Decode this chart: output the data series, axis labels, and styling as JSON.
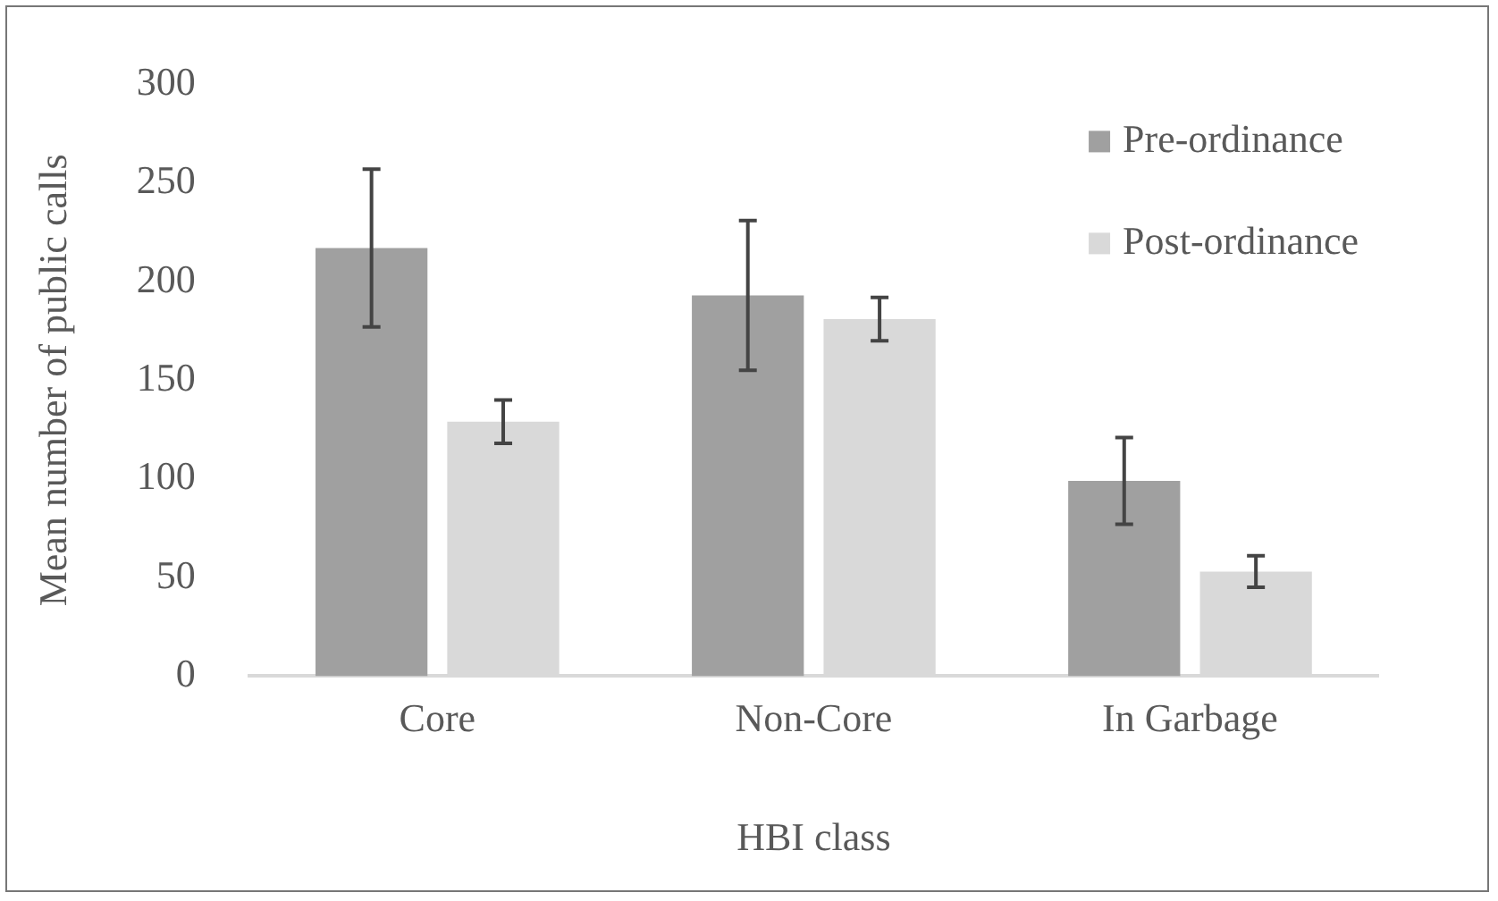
{
  "chart_data": {
    "type": "bar",
    "xlabel": "HBI class",
    "ylabel": "Mean number of public calls",
    "categories": [
      "Core",
      "Non-Core",
      "In Garbage"
    ],
    "series": [
      {
        "name": "Pre-ordinance",
        "color": "#a0a0a0",
        "values": [
          217,
          193,
          99
        ],
        "errors": [
          40,
          38,
          22
        ]
      },
      {
        "name": "Post-ordinance",
        "color": "#d9d9d9",
        "values": [
          129,
          181,
          53
        ],
        "errors": [
          11,
          11,
          8
        ]
      }
    ],
    "ylim": [
      0,
      300
    ],
    "yticks": [
      0,
      50,
      100,
      150,
      200,
      250,
      300
    ],
    "grid": false,
    "legend": "top right"
  }
}
